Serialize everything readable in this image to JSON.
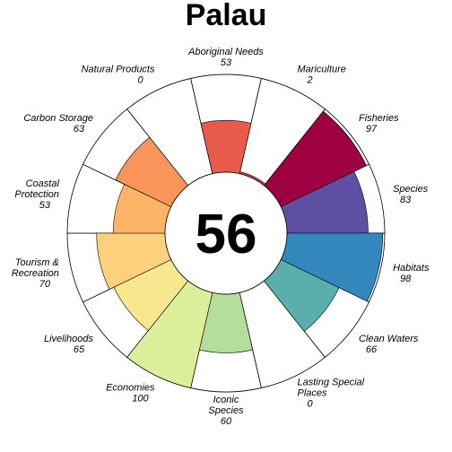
{
  "chart_data": {
    "type": "flower",
    "title": "Palau",
    "overall_score": "56",
    "max_value": 100,
    "petals": [
      {
        "label": [
          "Fisheries"
        ],
        "value_text": "97",
        "value": 97,
        "color": "#9e0142"
      },
      {
        "label": [
          "Species"
        ],
        "value_text": "83",
        "value": 83,
        "color": "#5e4fa2"
      },
      {
        "label": [
          "Habitats"
        ],
        "value_text": "98",
        "value": 98,
        "color": "#3288bd"
      },
      {
        "label": [
          "Clean Waters"
        ],
        "value_text": "66",
        "value": 66,
        "color": "#5aaeab"
      },
      {
        "label": [
          "Lasting Special",
          "Places"
        ],
        "value_text": "0",
        "value": 0,
        "color": "#66c2a5"
      },
      {
        "label": [
          "Iconic",
          "Species"
        ],
        "value_text": "60",
        "value": 60,
        "color": "#b4de9b"
      },
      {
        "label": [
          "Economies"
        ],
        "value_text": "100",
        "value": 100,
        "color": "#dbee99"
      },
      {
        "label": [
          "Livelihoods"
        ],
        "value_text": "65",
        "value": 65,
        "color": "#f7e78f"
      },
      {
        "label": [
          "Tourism &",
          "Recreation"
        ],
        "value_text": "70",
        "value": 70,
        "color": "#fdd07c"
      },
      {
        "label": [
          "Coastal",
          "Protection"
        ],
        "value_text": "53",
        "value": 53,
        "color": "#fdb467"
      },
      {
        "label": [
          "Carbon Storage"
        ],
        "value_text": "63",
        "value": 63,
        "color": "#f9955a"
      },
      {
        "label": [
          "Natural Products"
        ],
        "value_text": "0",
        "value": 0,
        "color": "#f46d43"
      },
      {
        "label": [
          "Aboriginal Needs"
        ],
        "value_text": "53",
        "value": 53,
        "color": "#e85b4a"
      },
      {
        "label": [
          "Mariculture"
        ],
        "value_text": "2",
        "value": 2,
        "color": "#d53e4f"
      }
    ]
  }
}
